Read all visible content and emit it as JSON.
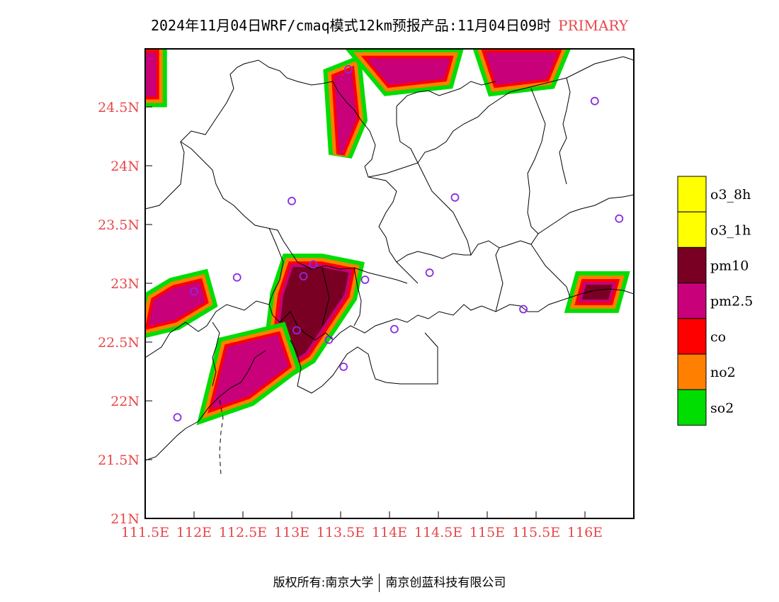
{
  "title": {
    "main": "2024年11月04日WRF/cmaq模式12km预报产品:11月04日09时",
    "tag": "PRIMARY"
  },
  "axes": {
    "lat_labels": [
      "21N",
      "21.5N",
      "22N",
      "22.5N",
      "23N",
      "23.5N",
      "24N",
      "24.5N"
    ],
    "lon_labels": [
      "111.5E",
      "112E",
      "112.5E",
      "113E",
      "113.5E",
      "114E",
      "114.5E",
      "115E",
      "115.5E",
      "116E"
    ],
    "label_color": "#e8474b"
  },
  "legend": {
    "items": [
      {
        "label": "o3_8h",
        "color": "#ffff00"
      },
      {
        "label": "o3_1h",
        "color": "#ffff00"
      },
      {
        "label": "pm10",
        "color": "#7a0023"
      },
      {
        "label": "pm2.5",
        "color": "#c8007a"
      },
      {
        "label": "co",
        "color": "#ff0000"
      },
      {
        "label": "no2",
        "color": "#ff8000"
      },
      {
        "label": "so2",
        "color": "#00dd00"
      }
    ]
  },
  "stations": [
    {
      "lon": 113.58,
      "lat": 24.82
    },
    {
      "lon": 116.1,
      "lat": 24.55
    },
    {
      "lon": 113.0,
      "lat": 23.7
    },
    {
      "lon": 114.67,
      "lat": 23.73
    },
    {
      "lon": 116.35,
      "lat": 23.55
    },
    {
      "lon": 113.22,
      "lat": 23.16
    },
    {
      "lon": 112.44,
      "lat": 23.05
    },
    {
      "lon": 113.12,
      "lat": 23.06
    },
    {
      "lon": 113.75,
      "lat": 23.03
    },
    {
      "lon": 114.41,
      "lat": 23.09
    },
    {
      "lon": 112.0,
      "lat": 22.93
    },
    {
      "lon": 115.37,
      "lat": 22.78
    },
    {
      "lon": 113.05,
      "lat": 22.6
    },
    {
      "lon": 113.38,
      "lat": 22.52
    },
    {
      "lon": 114.05,
      "lat": 22.61
    },
    {
      "lon": 113.53,
      "lat": 22.29
    },
    {
      "lon": 111.83,
      "lat": 21.86
    }
  ],
  "pollution_regions": [
    {
      "type": "pm10",
      "points": [
        [
          113.0,
          23.15
        ],
        [
          113.3,
          23.15
        ],
        [
          113.6,
          23.1
        ],
        [
          113.55,
          22.9
        ],
        [
          113.35,
          22.65
        ],
        [
          113.15,
          22.4
        ],
        [
          112.95,
          22.3
        ],
        [
          112.85,
          22.55
        ],
        [
          112.9,
          22.9
        ]
      ]
    },
    {
      "type": "pm2.5",
      "points": [
        [
          112.35,
          22.45
        ],
        [
          112.85,
          22.55
        ],
        [
          112.95,
          22.3
        ],
        [
          112.55,
          22.05
        ],
        [
          112.2,
          21.95
        ]
      ]
    },
    {
      "type": "pm2.5",
      "points": [
        [
          113.45,
          24.75
        ],
        [
          113.6,
          24.8
        ],
        [
          113.65,
          24.4
        ],
        [
          113.5,
          24.1
        ]
      ]
    },
    {
      "type": "pm2.5",
      "points": [
        [
          113.8,
          24.9
        ],
        [
          114.6,
          24.9
        ],
        [
          114.55,
          24.75
        ],
        [
          114.0,
          24.7
        ]
      ]
    },
    {
      "type": "pm2.5",
      "points": [
        [
          115.0,
          24.95
        ],
        [
          115.7,
          24.95
        ],
        [
          115.6,
          24.75
        ],
        [
          115.1,
          24.7
        ]
      ]
    },
    {
      "type": "pm10",
      "points": [
        [
          116.0,
          23.0
        ],
        [
          116.3,
          23.0
        ],
        [
          116.25,
          22.85
        ],
        [
          115.95,
          22.85
        ]
      ]
    },
    {
      "type": "pm2.5",
      "points": [
        [
          111.6,
          22.85
        ],
        [
          111.8,
          22.95
        ],
        [
          112.05,
          23.0
        ],
        [
          112.1,
          22.85
        ],
        [
          111.8,
          22.7
        ],
        [
          111.55,
          22.65
        ]
      ]
    },
    {
      "type": "pm2.5",
      "points": [
        [
          111.5,
          24.95
        ],
        [
          111.6,
          24.95
        ],
        [
          111.6,
          24.6
        ],
        [
          111.5,
          24.6
        ]
      ]
    }
  ],
  "footer": {
    "left": "版权所有:南京大学",
    "right": "南京创蓝科技有限公司"
  }
}
